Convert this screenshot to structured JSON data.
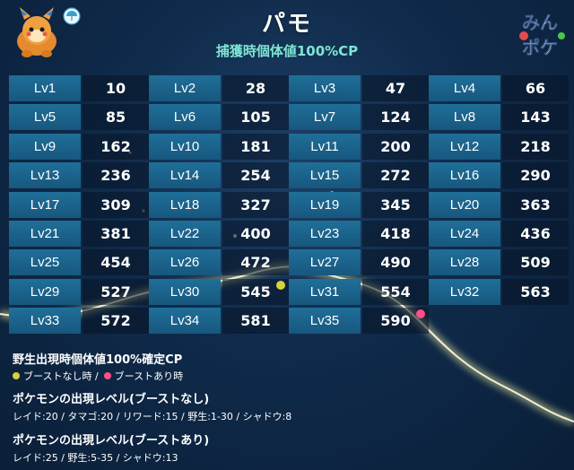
{
  "header": {
    "title": "パモ",
    "subtitle": "捕獲時個体値100%CP",
    "logo_line1": "みん",
    "logo_line2": "ポケ"
  },
  "levels": [
    {
      "lv": "Lv1",
      "cp": "10"
    },
    {
      "lv": "Lv2",
      "cp": "28"
    },
    {
      "lv": "Lv3",
      "cp": "47"
    },
    {
      "lv": "Lv4",
      "cp": "66"
    },
    {
      "lv": "Lv5",
      "cp": "85"
    },
    {
      "lv": "Lv6",
      "cp": "105"
    },
    {
      "lv": "Lv7",
      "cp": "124"
    },
    {
      "lv": "Lv8",
      "cp": "143"
    },
    {
      "lv": "Lv9",
      "cp": "162"
    },
    {
      "lv": "Lv10",
      "cp": "181"
    },
    {
      "lv": "Lv11",
      "cp": "200"
    },
    {
      "lv": "Lv12",
      "cp": "218"
    },
    {
      "lv": "Lv13",
      "cp": "236"
    },
    {
      "lv": "Lv14",
      "cp": "254"
    },
    {
      "lv": "Lv15",
      "cp": "272"
    },
    {
      "lv": "Lv16",
      "cp": "290"
    },
    {
      "lv": "Lv17",
      "cp": "309"
    },
    {
      "lv": "Lv18",
      "cp": "327"
    },
    {
      "lv": "Lv19",
      "cp": "345"
    },
    {
      "lv": "Lv20",
      "cp": "363"
    },
    {
      "lv": "Lv21",
      "cp": "381"
    },
    {
      "lv": "Lv22",
      "cp": "400"
    },
    {
      "lv": "Lv23",
      "cp": "418"
    },
    {
      "lv": "Lv24",
      "cp": "436"
    },
    {
      "lv": "Lv25",
      "cp": "454"
    },
    {
      "lv": "Lv26",
      "cp": "472"
    },
    {
      "lv": "Lv27",
      "cp": "490"
    },
    {
      "lv": "Lv28",
      "cp": "509"
    },
    {
      "lv": "Lv29",
      "cp": "527"
    },
    {
      "lv": "Lv30",
      "cp": "545"
    },
    {
      "lv": "Lv31",
      "cp": "554"
    },
    {
      "lv": "Lv32",
      "cp": "563"
    },
    {
      "lv": "Lv33",
      "cp": "572"
    },
    {
      "lv": "Lv34",
      "cp": "581"
    },
    {
      "lv": "Lv35",
      "cp": "590"
    }
  ],
  "footer": {
    "wild_title": "野生出現時個体値100%確定CP",
    "legend_no_boost": "ブーストなし時 /",
    "legend_boost": "ブーストあり時",
    "no_boost_title": "ポケモンの出現レベル(ブーストなし)",
    "no_boost_text": "レイド:20 / タマゴ:20 / リワード:15 / 野生:1-30 / シャドウ:8",
    "boost_title": "ポケモンの出現レベル(ブーストあり)",
    "boost_text": "レイド:25 / 野生:5-35 / シャドウ:13"
  },
  "colors": {
    "no_boost_dot": "#d8d23a",
    "boost_dot": "#ff4f86",
    "subtitle": "#7fe6d2"
  },
  "markers": {
    "no_boost_level": "Lv30",
    "boost_level": "Lv35"
  }
}
